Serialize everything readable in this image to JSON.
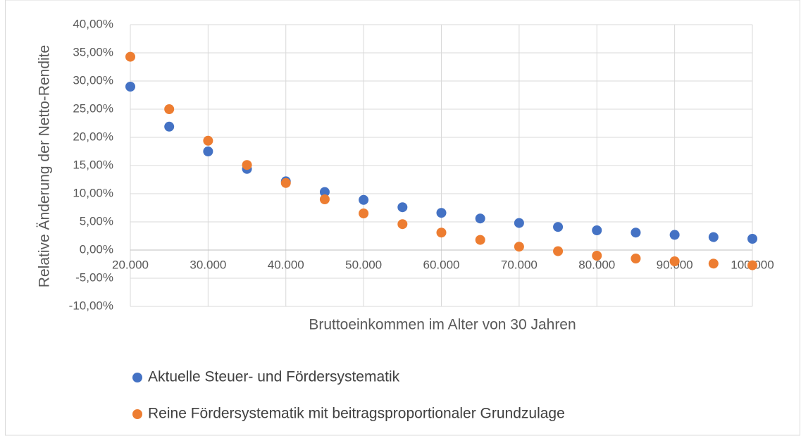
{
  "chart_data": {
    "type": "scatter",
    "xlabel": "Bruttoeinkommen im Alter von 30 Jahren",
    "ylabel": "Relative Änderung der Netto-Rendite",
    "x": [
      20000,
      25000,
      30000,
      35000,
      40000,
      45000,
      50000,
      55000,
      60000,
      65000,
      70000,
      75000,
      80000,
      85000,
      90000,
      95000,
      100000
    ],
    "series": [
      {
        "name": "Aktuelle Steuer- und Fördersystematik",
        "color": "#4472c4",
        "values": [
          29.0,
          21.9,
          17.5,
          14.4,
          12.2,
          10.3,
          8.9,
          7.6,
          6.6,
          5.6,
          4.8,
          4.1,
          3.5,
          3.1,
          2.7,
          2.3,
          2.0
        ]
      },
      {
        "name": "Reine Fördersystematik mit beitragsproportionaler Grundzulage",
        "color": "#ed7d31",
        "values": [
          34.3,
          25.0,
          19.4,
          15.1,
          11.9,
          9.0,
          6.5,
          4.6,
          3.1,
          1.8,
          0.6,
          -0.2,
          -1.0,
          -1.5,
          -2.0,
          -2.4,
          -2.7
        ]
      }
    ],
    "xlim": [
      20000,
      100000
    ],
    "xticks": [
      {
        "value": 20000,
        "label": "20.000"
      },
      {
        "value": 30000,
        "label": "30.000"
      },
      {
        "value": 40000,
        "label": "40.000"
      },
      {
        "value": 50000,
        "label": "50.000"
      },
      {
        "value": 60000,
        "label": "60.000"
      },
      {
        "value": 70000,
        "label": "70.000"
      },
      {
        "value": 80000,
        "label": "80.000"
      },
      {
        "value": 90000,
        "label": "90.000"
      },
      {
        "value": 100000,
        "label": "100.000"
      }
    ],
    "ylim": [
      -10,
      40
    ],
    "yticks": [
      {
        "value": -10,
        "label": "-10,00%"
      },
      {
        "value": -5,
        "label": "-5,00%"
      },
      {
        "value": 0,
        "label": "0,00%"
      },
      {
        "value": 5,
        "label": "5,00%"
      },
      {
        "value": 10,
        "label": "10,00%"
      },
      {
        "value": 15,
        "label": "15,00%"
      },
      {
        "value": 20,
        "label": "20,00%"
      },
      {
        "value": 25,
        "label": "25,00%"
      },
      {
        "value": 30,
        "label": "30,00%"
      },
      {
        "value": 35,
        "label": "35,00%"
      },
      {
        "value": 40,
        "label": "40,00%"
      }
    ],
    "grid": true
  }
}
